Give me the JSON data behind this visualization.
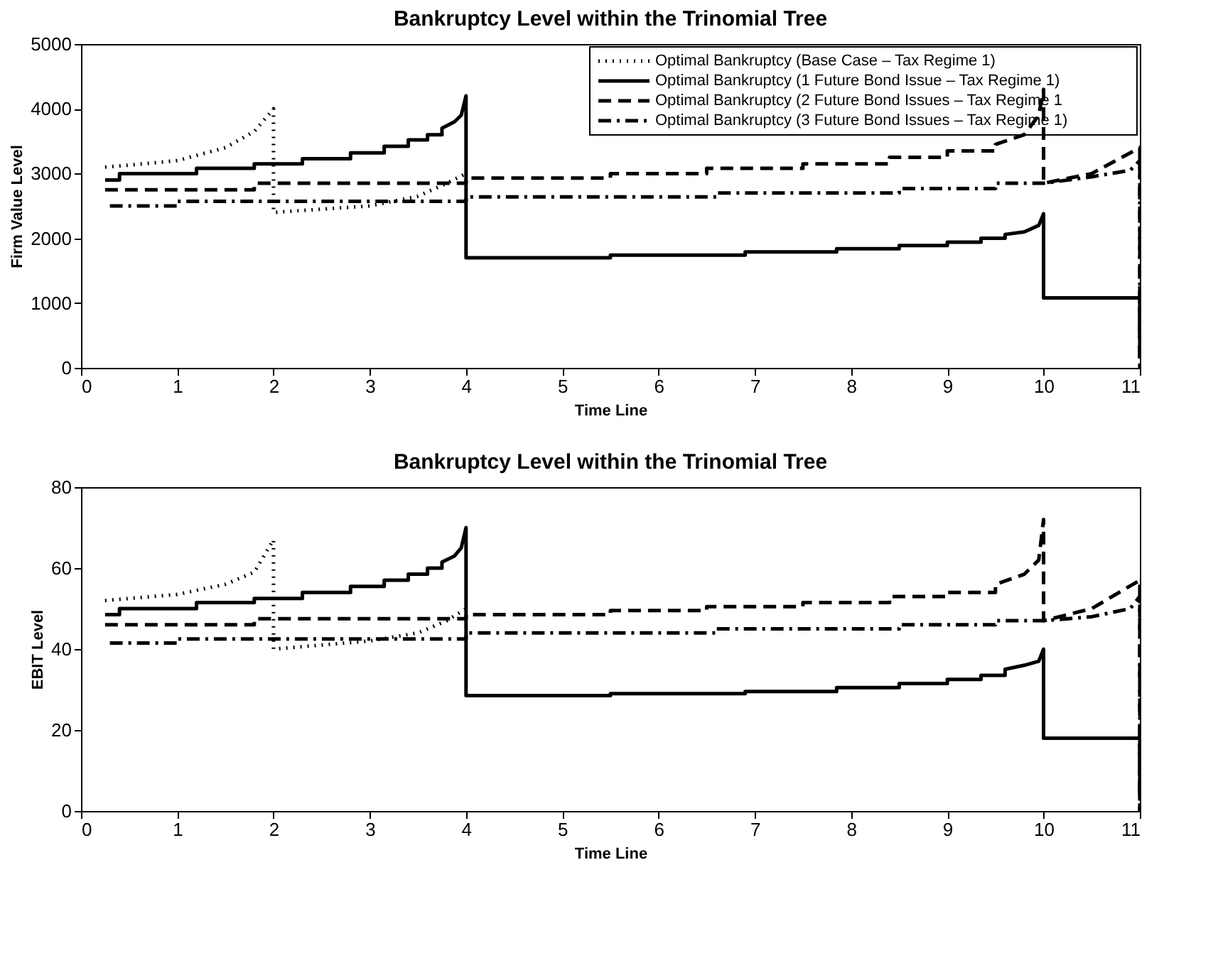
{
  "chart_data": [
    {
      "type": "line",
      "title": "Bankruptcy Level within the Trinomial Tree",
      "xlabel": "Time Line",
      "ylabel": "Firm Value Level",
      "xlim": [
        0,
        11
      ],
      "xticks": [
        0,
        1,
        2,
        3,
        4,
        5,
        6,
        7,
        8,
        9,
        10,
        11
      ],
      "ylim": [
        0,
        5000
      ],
      "yticks": [
        0,
        1000,
        2000,
        3000,
        4000,
        5000
      ],
      "grid": false,
      "legend": "top right",
      "marker": "none",
      "series": [
        {
          "name": "Optimal Bankruptcy (Base Case – Tax Regime 1)",
          "color": "#000000",
          "line_style": "dotted",
          "x": [
            0.25,
            0.5,
            1,
            1.5,
            1.8,
            2,
            2,
            2.5,
            3,
            3.5,
            3.8,
            4
          ],
          "values": [
            3100,
            3130,
            3200,
            3400,
            3650,
            4000,
            2400,
            2450,
            2500,
            2650,
            2850,
            3000
          ]
        },
        {
          "name": "Optimal Bankruptcy (1 Future Bond Issue – Tax Regime 1)",
          "color": "#000000",
          "line_style": "solid",
          "x": [
            0.25,
            0.4,
            0.4,
            1.2,
            1.2,
            1.8,
            1.8,
            2.3,
            2.3,
            2.8,
            2.8,
            3.15,
            3.15,
            3.4,
            3.4,
            3.6,
            3.6,
            3.75,
            3.75,
            3.88,
            3.95,
            4,
            4,
            5.5,
            5.5,
            6.9,
            6.9,
            7.85,
            7.85,
            8.5,
            8.5,
            9,
            9,
            9.35,
            9.35,
            9.6,
            9.6,
            9.8,
            9.95,
            10,
            10,
            11,
            11
          ],
          "values": [
            2900,
            2900,
            3000,
            3000,
            3080,
            3080,
            3150,
            3150,
            3230,
            3230,
            3320,
            3320,
            3420,
            3420,
            3520,
            3520,
            3600,
            3600,
            3700,
            3800,
            3900,
            4200,
            1700,
            1700,
            1740,
            1740,
            1790,
            1790,
            1840,
            1840,
            1890,
            1890,
            1940,
            1940,
            2000,
            2000,
            2060,
            2100,
            2200,
            2380,
            1080,
            1080,
            150
          ]
        },
        {
          "name": "Optimal Bankruptcy (2 Future Bond Issues – Tax Regime 1",
          "color": "#000000",
          "line_style": "dashed",
          "x": [
            0.25,
            1.8,
            1.8,
            4,
            4,
            5.5,
            5.5,
            6.5,
            6.5,
            7.5,
            7.5,
            8.4,
            8.4,
            9,
            9,
            9.5,
            9.5,
            9.8,
            9.95,
            10,
            10,
            10.5,
            11,
            11
          ],
          "values": [
            2750,
            2750,
            2850,
            2850,
            2930,
            2930,
            3000,
            3000,
            3080,
            3080,
            3150,
            3150,
            3250,
            3250,
            3350,
            3350,
            3450,
            3600,
            3900,
            4300,
            2850,
            3000,
            3400,
            0
          ]
        },
        {
          "name": "Optimal Bankruptcy  (3 Future Bond Issues – Tax Regime 1)",
          "color": "#000000",
          "line_style": "dashdot",
          "x": [
            0.3,
            1,
            1,
            4,
            4,
            6.6,
            6.6,
            8.5,
            8.5,
            9.5,
            9.5,
            10,
            10.5,
            10.9,
            11,
            11
          ],
          "values": [
            2500,
            2500,
            2570,
            2570,
            2640,
            2640,
            2700,
            2700,
            2770,
            2770,
            2850,
            2850,
            2950,
            3050,
            3200,
            0
          ]
        }
      ]
    },
    {
      "type": "line",
      "title": "Bankruptcy Level within the Trinomial Tree",
      "xlabel": "Time Line",
      "ylabel": "EBIT Level",
      "xlim": [
        0,
        11
      ],
      "xticks": [
        0,
        1,
        2,
        3,
        4,
        5,
        6,
        7,
        8,
        9,
        10,
        11
      ],
      "ylim": [
        0,
        80
      ],
      "yticks": [
        0,
        20,
        40,
        60,
        80
      ],
      "grid": false,
      "marker": "none",
      "series": [
        {
          "color": "#000000",
          "line_style": "dotted",
          "x": [
            0.25,
            0.5,
            1,
            1.5,
            1.8,
            2,
            2,
            2.5,
            3,
            3.5,
            3.8,
            4
          ],
          "values": [
            52,
            52.5,
            53.5,
            56,
            59,
            67,
            40,
            41,
            42,
            44,
            47,
            50
          ]
        },
        {
          "color": "#000000",
          "line_style": "solid",
          "x": [
            0.25,
            0.4,
            0.4,
            1.2,
            1.2,
            1.8,
            1.8,
            2.3,
            2.3,
            2.8,
            2.8,
            3.15,
            3.15,
            3.4,
            3.4,
            3.6,
            3.6,
            3.75,
            3.75,
            3.88,
            3.95,
            4,
            4,
            5.5,
            5.5,
            6.9,
            6.9,
            7.85,
            7.85,
            8.5,
            8.5,
            9,
            9,
            9.35,
            9.35,
            9.6,
            9.6,
            9.8,
            9.95,
            10,
            10,
            11,
            11
          ],
          "values": [
            48.5,
            48.5,
            50,
            50,
            51.5,
            51.5,
            52.5,
            52.5,
            54,
            54,
            55.5,
            55.5,
            57,
            57,
            58.5,
            58.5,
            60,
            60,
            61.5,
            63,
            65,
            70,
            28.5,
            28.5,
            29,
            29,
            29.5,
            29.5,
            30.5,
            30.5,
            31.5,
            31.5,
            32.5,
            32.5,
            33.5,
            33.5,
            35,
            36,
            37,
            40,
            18,
            18,
            3
          ]
        },
        {
          "color": "#000000",
          "line_style": "dashed",
          "x": [
            0.25,
            1.8,
            1.8,
            4,
            4,
            5.5,
            5.5,
            6.5,
            6.5,
            7.5,
            7.5,
            8.4,
            8.4,
            9,
            9,
            9.5,
            9.5,
            9.8,
            9.95,
            10,
            10,
            10.5,
            11,
            11
          ],
          "values": [
            46,
            46,
            47.5,
            47.5,
            48.5,
            48.5,
            49.5,
            49.5,
            50.5,
            50.5,
            51.5,
            51.5,
            53,
            53,
            54,
            54,
            56,
            58.5,
            62,
            72,
            47,
            50,
            57,
            0
          ]
        },
        {
          "color": "#000000",
          "line_style": "dashdot",
          "x": [
            0.3,
            1,
            1,
            4,
            4,
            6.6,
            6.6,
            8.5,
            8.5,
            9.5,
            9.5,
            10,
            10.5,
            10.9,
            11,
            11
          ],
          "values": [
            41.5,
            41.5,
            42.5,
            42.5,
            44,
            44,
            45,
            45,
            46,
            46,
            47,
            47,
            48,
            50,
            53,
            0
          ]
        }
      ]
    }
  ]
}
